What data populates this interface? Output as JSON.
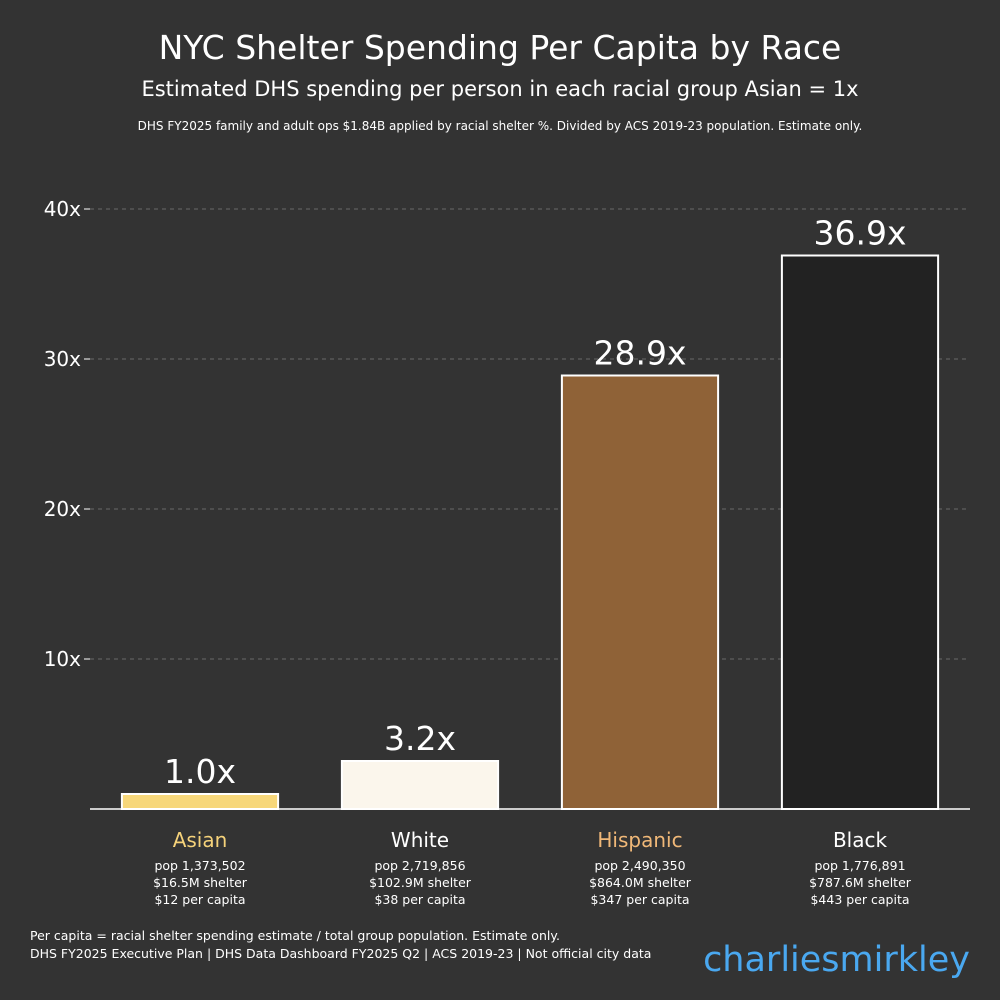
{
  "title": "NYC Shelter Spending Per Capita by Race",
  "subtitle": "Estimated DHS spending per person in each racial group Asian = 1x",
  "note": "DHS FY2025 family and adult ops $1.84B applied by racial shelter %. Divided by ACS 2019-23 population. Estimate only.",
  "footer": {
    "line1": "Per capita = racial shelter spending estimate / total group population. Estimate only.",
    "line2": "DHS FY2025 Executive Plan | DHS Data Dashboard FY2025 Q2 | ACS 2019-23 | Not official city data"
  },
  "watermark": "charliesmirkley",
  "colors": {
    "background": "#333333",
    "grid": "#6a6a6a",
    "axis": "#ffffff",
    "bar_outline": "#ffffff",
    "watermark": "#4aa8f0"
  },
  "chart_data": {
    "type": "bar",
    "categories": [
      "Asian",
      "White",
      "Hispanic",
      "Black"
    ],
    "values": [
      1.0,
      3.2,
      28.9,
      36.9
    ],
    "value_labels": [
      "1.0x",
      "3.2x",
      "28.9x",
      "36.9x"
    ],
    "bar_colors": [
      "#f7d77a",
      "#fbf6ec",
      "#8f6237",
      "#222222"
    ],
    "category_label_colors": [
      "#f5d27a",
      "#ffffff",
      "#f0b878",
      "#ffffff"
    ],
    "details": [
      [
        "pop 1,373,502",
        "$16.5M shelter",
        "$12 per capita"
      ],
      [
        "pop 2,719,856",
        "$102.9M shelter",
        "$38 per capita"
      ],
      [
        "pop 2,490,350",
        "$864.0M shelter",
        "$347 per capita"
      ],
      [
        "pop 1,776,891",
        "$787.6M shelter",
        "$443 per capita"
      ]
    ],
    "yticks": [
      10,
      20,
      30,
      40
    ],
    "ytick_labels": [
      "10x",
      "20x",
      "30x",
      "40x"
    ],
    "ylim": [
      0,
      40
    ],
    "grid": true,
    "xlabel": "",
    "ylabel": ""
  }
}
